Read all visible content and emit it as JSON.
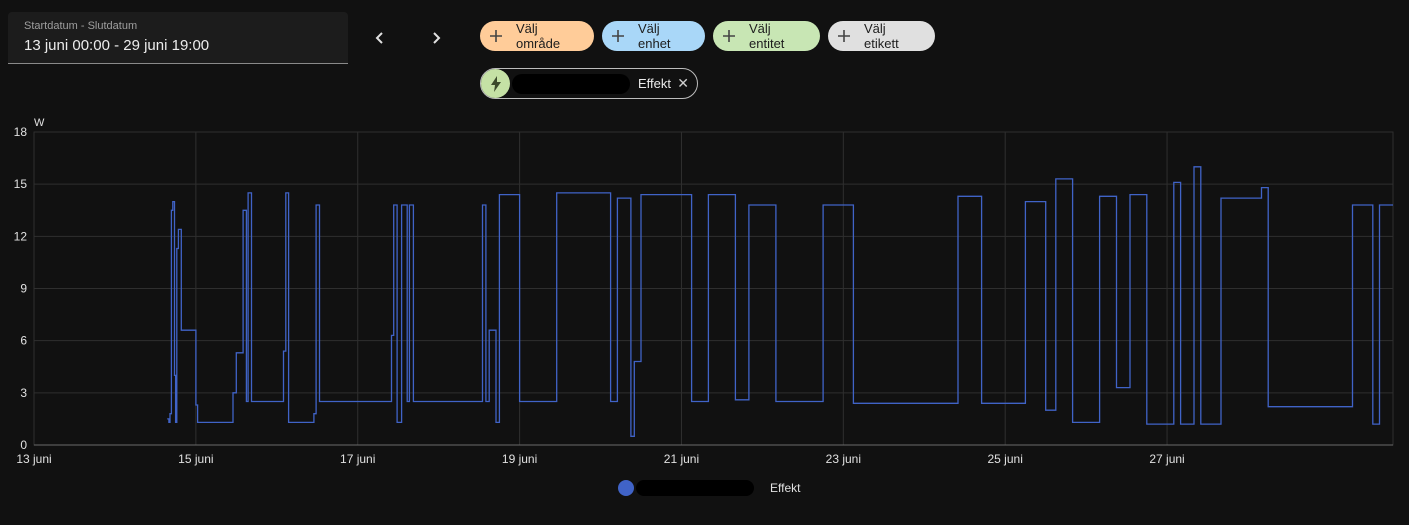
{
  "date_picker": {
    "label": "Startdatum - Slutdatum",
    "value": "13 juni 00:00 - 29 juni 19:00"
  },
  "nav": {
    "prev_icon": "chevron-left-icon",
    "next_icon": "chevron-right-icon"
  },
  "target_chips": [
    {
      "label": "Välj område",
      "color": "#ffcc99"
    },
    {
      "label": "Välj enhet",
      "color": "#a9d7f8"
    },
    {
      "label": "Välj entitet",
      "color": "#c8e6b4"
    },
    {
      "label": "Välj etikett",
      "color": "#e0e0e0"
    }
  ],
  "selected": {
    "icon": "lightning-icon",
    "label": "Effekt",
    "close_icon": "close-icon"
  },
  "legend": {
    "label": "Effekt",
    "color": "#4063c7"
  },
  "chart_data": {
    "type": "line",
    "unit": "W",
    "ylim": [
      0,
      18
    ],
    "yticks": [
      "0",
      "3",
      "6",
      "9",
      "12",
      "15",
      "18"
    ],
    "x_range_days": [
      "13 juni",
      "29 juni 19:00"
    ],
    "xticks": [
      "13 juni",
      "15 juni",
      "17 juni",
      "19 juni",
      "21 juni",
      "23 juni",
      "25 juni",
      "27 juni"
    ],
    "grid": true,
    "series": [
      {
        "name": "Effekt",
        "color": "#4063c7",
        "step": true,
        "points": [
          [
            "2024-06-14T15:30",
            1.5
          ],
          [
            "2024-06-14T16:00",
            1.3
          ],
          [
            "2024-06-14T16:20",
            1.8
          ],
          [
            "2024-06-14T16:45",
            13.5
          ],
          [
            "2024-06-14T17:10",
            14.0
          ],
          [
            "2024-06-14T17:40",
            4.0
          ],
          [
            "2024-06-14T18:00",
            1.3
          ],
          [
            "2024-06-14T18:20",
            11.3
          ],
          [
            "2024-06-14T18:50",
            12.4
          ],
          [
            "2024-06-14T19:40",
            6.6
          ],
          [
            "2024-06-15T00:00",
            2.3
          ],
          [
            "2024-06-15T00:30",
            1.3
          ],
          [
            "2024-06-15T11:00",
            3.0
          ],
          [
            "2024-06-15T12:00",
            5.3
          ],
          [
            "2024-06-15T14:00",
            13.5
          ],
          [
            "2024-06-15T15:00",
            2.5
          ],
          [
            "2024-06-15T15:30",
            14.5
          ],
          [
            "2024-06-15T16:30",
            2.5
          ],
          [
            "2024-06-16T02:00",
            5.4
          ],
          [
            "2024-06-16T02:40",
            14.5
          ],
          [
            "2024-06-16T03:30",
            1.3
          ],
          [
            "2024-06-16T11:00",
            1.8
          ],
          [
            "2024-06-16T11:40",
            13.8
          ],
          [
            "2024-06-16T12:40",
            2.5
          ],
          [
            "2024-06-17T10:00",
            6.3
          ],
          [
            "2024-06-17T10:40",
            13.8
          ],
          [
            "2024-06-17T11:40",
            1.3
          ],
          [
            "2024-06-17T13:00",
            13.8
          ],
          [
            "2024-06-17T14:40",
            2.5
          ],
          [
            "2024-06-17T15:20",
            13.8
          ],
          [
            "2024-06-17T16:30",
            2.5
          ],
          [
            "2024-06-18T13:00",
            13.8
          ],
          [
            "2024-06-18T14:00",
            2.5
          ],
          [
            "2024-06-18T15:00",
            6.6
          ],
          [
            "2024-06-18T17:00",
            1.3
          ],
          [
            "2024-06-18T18:00",
            14.4
          ],
          [
            "2024-06-19T00:00",
            2.5
          ],
          [
            "2024-06-19T11:00",
            14.5
          ],
          [
            "2024-06-20T03:00",
            2.5
          ],
          [
            "2024-06-20T05:00",
            14.2
          ],
          [
            "2024-06-20T09:00",
            0.5
          ],
          [
            "2024-06-20T10:00",
            4.8
          ],
          [
            "2024-06-20T12:00",
            14.4
          ],
          [
            "2024-06-21T03:00",
            2.5
          ],
          [
            "2024-06-21T08:00",
            14.4
          ],
          [
            "2024-06-21T16:00",
            2.6
          ],
          [
            "2024-06-21T20:00",
            13.8
          ],
          [
            "2024-06-22T04:00",
            2.5
          ],
          [
            "2024-06-22T18:00",
            13.8
          ],
          [
            "2024-06-23T03:00",
            2.4
          ],
          [
            "2024-06-24T10:00",
            14.3
          ],
          [
            "2024-06-24T17:00",
            2.4
          ],
          [
            "2024-06-25T06:00",
            14.0
          ],
          [
            "2024-06-25T12:00",
            2.0
          ],
          [
            "2024-06-25T15:00",
            15.3
          ],
          [
            "2024-06-25T20:00",
            1.3
          ],
          [
            "2024-06-26T04:00",
            14.3
          ],
          [
            "2024-06-26T09:00",
            3.3
          ],
          [
            "2024-06-26T13:00",
            14.4
          ],
          [
            "2024-06-26T18:00",
            1.2
          ],
          [
            "2024-06-27T02:00",
            15.1
          ],
          [
            "2024-06-27T04:00",
            1.2
          ],
          [
            "2024-06-27T08:00",
            16.0
          ],
          [
            "2024-06-27T10:00",
            1.2
          ],
          [
            "2024-06-27T16:00",
            14.2
          ],
          [
            "2024-06-28T04:00",
            14.8
          ],
          [
            "2024-06-28T06:00",
            2.2
          ],
          [
            "2024-06-29T07:00",
            13.8
          ],
          [
            "2024-06-29T13:00",
            1.2
          ],
          [
            "2024-06-29T15:00",
            13.8
          ],
          [
            "2024-06-29T19:00",
            13.8
          ]
        ]
      }
    ]
  }
}
